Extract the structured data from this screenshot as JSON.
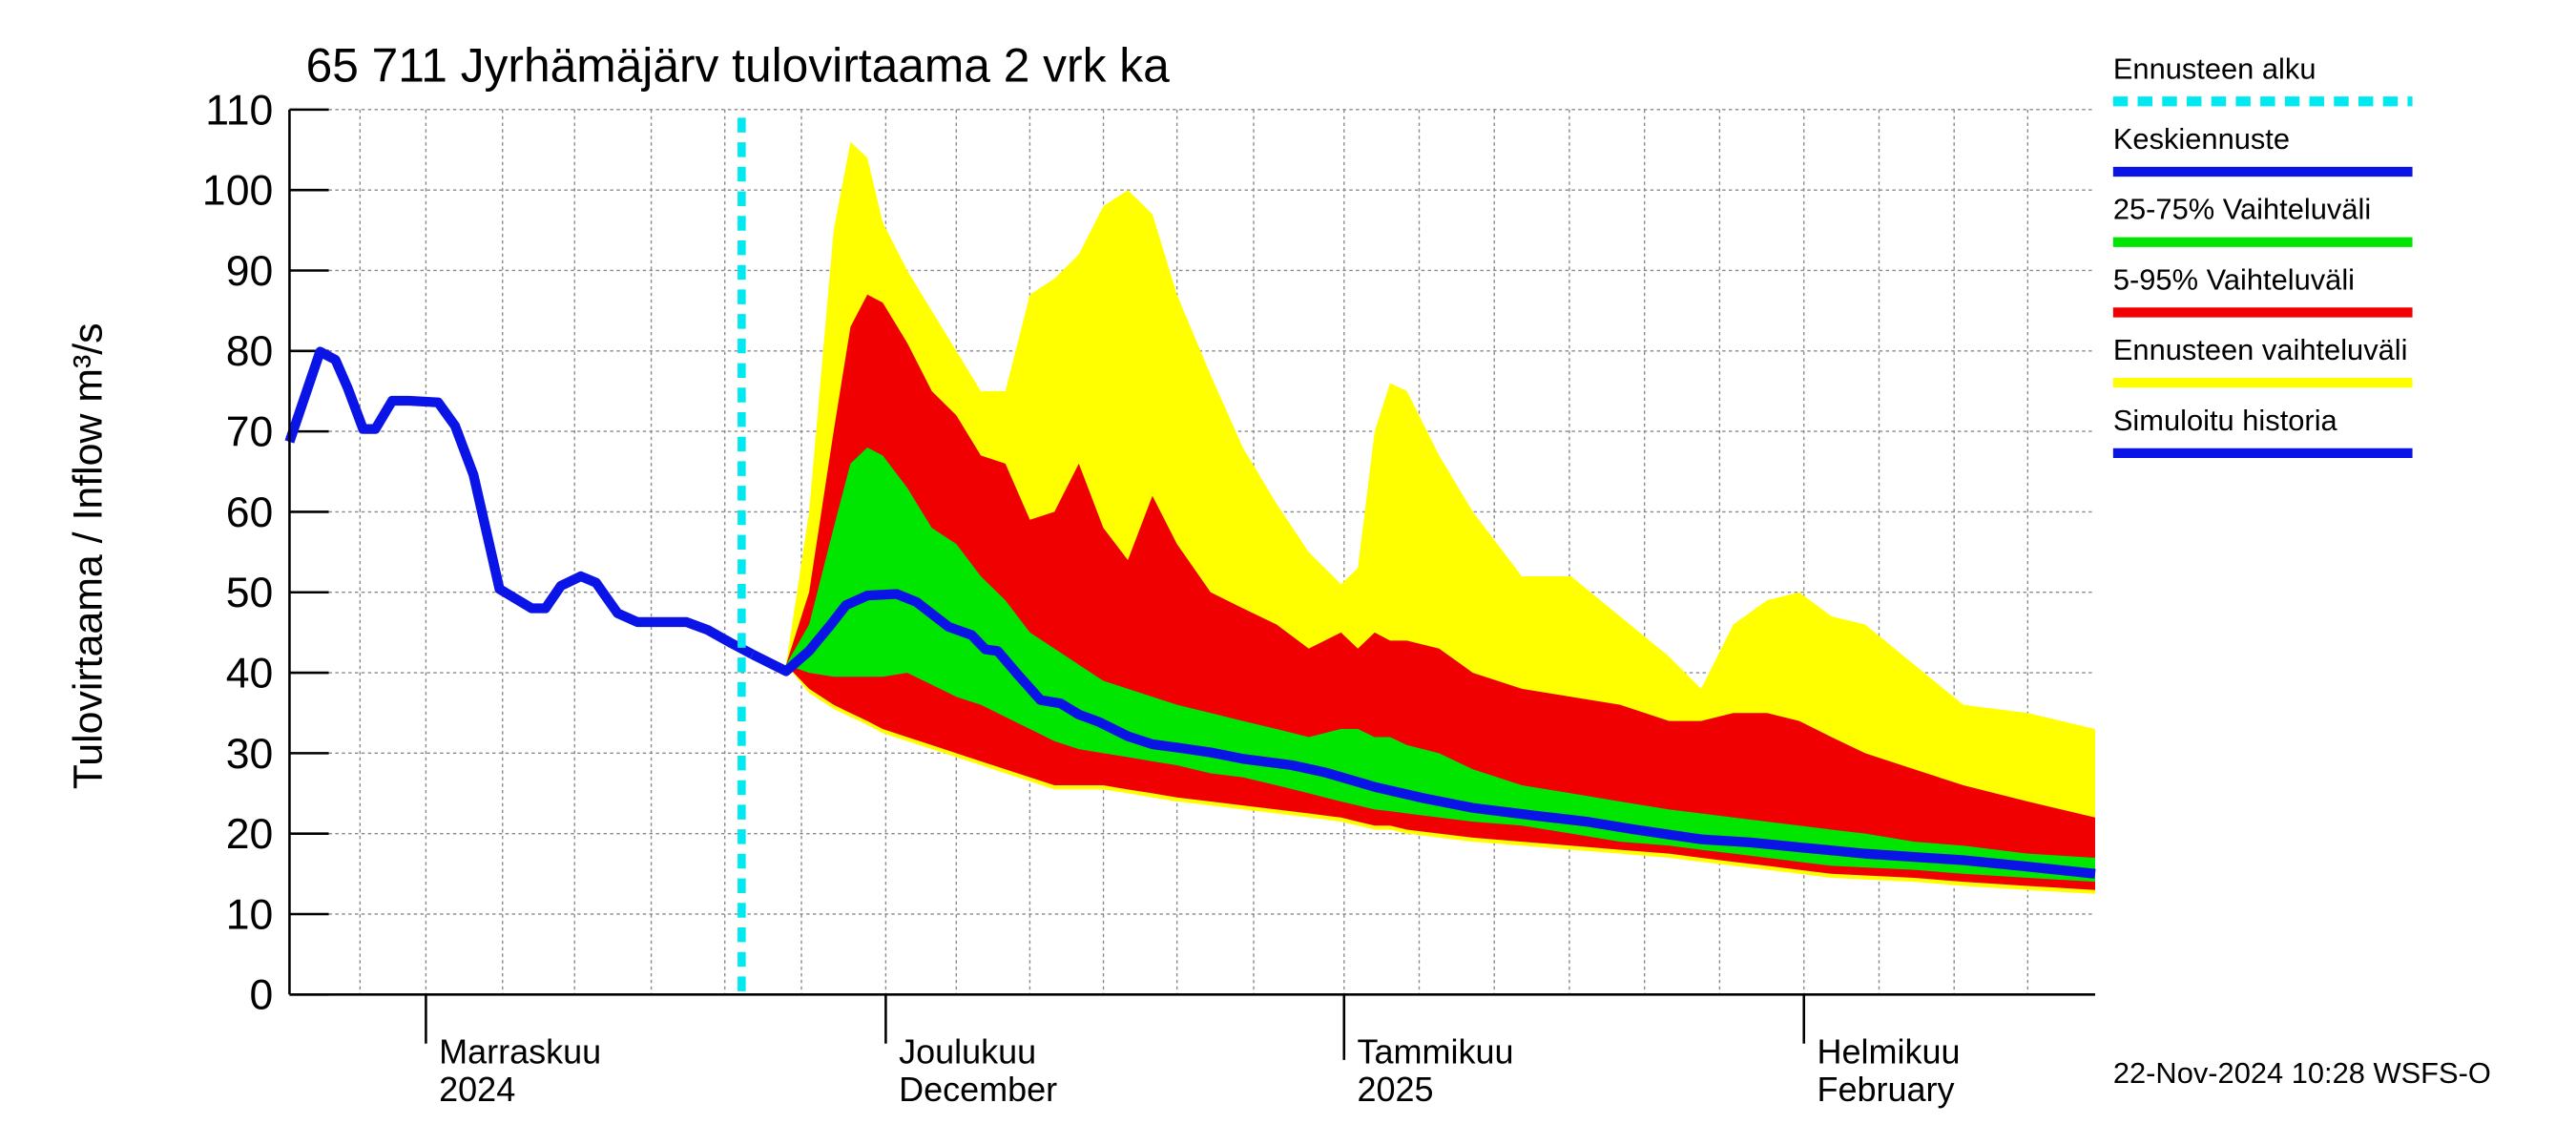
{
  "chart_data": {
    "type": "line",
    "title": "65 711 Jyrhämäjärv tulovirtaama 2 vrk ka",
    "y_label": "Tulovirtaama / Inflow    m³/s",
    "footer": "22-Nov-2024 10:28 WSFS-O",
    "xlim": [
      0,
      117.8
    ],
    "ylim": [
      0,
      110
    ],
    "yticks": [
      0,
      10,
      20,
      30,
      40,
      50,
      60,
      70,
      80,
      90,
      100,
      110
    ],
    "xticks": [
      {
        "value": 8.9,
        "label": "Marraskuu\n2024"
      },
      {
        "value": 38.9,
        "label": "Joulukuu\nDecember"
      },
      {
        "value": 68.8,
        "label": "Tammikuu\n2025"
      },
      {
        "value": 98.8,
        "label": "Helmikuu\nFebruary"
      }
    ],
    "xgrid": [
      4.6,
      13.9,
      18.6,
      23.6,
      28.4,
      33.4,
      43.5,
      48.3,
      53.1,
      57.9,
      62.9,
      73.7,
      78.6,
      83.5,
      88.4,
      93.3,
      103.7,
      108.6,
      113.4
    ],
    "grid": true,
    "legend": "right",
    "forecast_start": {
      "name": "Ennusteen alku",
      "x": 29.5,
      "color": "#00e8f0"
    },
    "series": [
      {
        "name": "Keskiennuste",
        "type": "line",
        "color": "#0a14e6",
        "x": [
          30.2,
          32.4,
          33.9,
          35.2,
          36.3,
          37.7,
          39.6,
          40.9,
          43.0,
          44.5,
          45.4,
          46.2,
          47.5,
          49.0,
          50.3,
          51.5,
          52.8,
          54.7,
          56.3,
          57.9,
          60.1,
          62.2,
          65.4,
          67.6,
          70.8,
          74.0,
          77.2,
          81.4,
          84.6,
          87.8,
          92.1,
          95.3,
          98.5,
          102.8,
          106.0,
          109.2,
          113.4,
          117.8
        ],
        "values": [
          42.3,
          40.2,
          42.7,
          45.7,
          48.4,
          49.6,
          49.8,
          48.8,
          45.7,
          44.7,
          42.9,
          42.7,
          39.8,
          36.6,
          36.2,
          34.8,
          33.9,
          32.1,
          31.1,
          30.7,
          30.1,
          29.3,
          28.5,
          27.6,
          25.8,
          24.4,
          23.2,
          22.2,
          21.5,
          20.5,
          19.3,
          18.9,
          18.3,
          17.5,
          17.1,
          16.7,
          15.9,
          15.0
        ]
      },
      {
        "name": "25-75% Vaihteluväli",
        "type": "band",
        "color": "#00e600",
        "x": [
          32.4,
          33.9,
          35.5,
          36.6,
          37.7,
          38.7,
          40.3,
          41.9,
          43.5,
          45.1,
          46.7,
          48.3,
          49.9,
          51.5,
          53.1,
          54.7,
          56.3,
          57.9,
          60.1,
          62.2,
          64.4,
          66.5,
          68.6,
          69.7,
          70.8,
          71.8,
          72.9,
          75.0,
          77.2,
          80.4,
          83.6,
          86.8,
          90.0,
          92.1,
          94.2,
          96.4,
          98.5,
          100.6,
          102.8,
          106.0,
          109.2,
          113.4,
          117.8
        ],
        "high": [
          41,
          46,
          58,
          66,
          68,
          67,
          63,
          58,
          56,
          52,
          49,
          45,
          43,
          41,
          39,
          38,
          37,
          36,
          35,
          34,
          33,
          32,
          33,
          33,
          32,
          32,
          31,
          30,
          28,
          26,
          25,
          24,
          23,
          22.5,
          22,
          21.5,
          21,
          20.5,
          20,
          19,
          18.5,
          17.5,
          17
        ],
        "low": [
          41,
          40,
          39.5,
          39.5,
          39.5,
          39.5,
          40,
          38.5,
          37,
          36,
          34.5,
          33,
          31.5,
          30.5,
          30,
          29.5,
          29,
          28.5,
          27.5,
          27,
          26,
          25,
          24,
          23.5,
          23,
          22.8,
          22.5,
          22,
          21.5,
          21,
          20,
          19,
          18.5,
          18,
          17.5,
          17,
          16.5,
          16,
          15.8,
          15.5,
          15,
          14.5,
          14
        ]
      },
      {
        "name": "5-95% Vaihteluväli",
        "type": "band",
        "color": "#f00000",
        "x": [
          32.4,
          33.9,
          35.5,
          36.6,
          37.7,
          38.7,
          40.3,
          41.9,
          43.5,
          45.1,
          46.7,
          48.3,
          49.9,
          51.5,
          53.1,
          54.7,
          56.3,
          57.9,
          60.1,
          62.2,
          64.4,
          66.5,
          68.6,
          69.7,
          70.8,
          71.8,
          72.9,
          75.0,
          77.2,
          80.4,
          83.6,
          86.8,
          90.0,
          92.1,
          94.2,
          96.4,
          98.5,
          100.6,
          102.8,
          106.0,
          109.2,
          113.4,
          117.8
        ],
        "high": [
          41,
          50,
          70,
          83,
          87,
          86,
          81,
          75,
          72,
          67,
          66,
          59,
          60,
          66,
          58,
          54,
          62,
          56,
          50,
          48,
          46,
          43,
          45,
          43,
          45,
          44,
          44,
          43,
          40,
          38,
          37,
          36,
          34,
          34,
          35,
          35,
          34,
          32,
          30,
          28,
          26,
          24,
          22
        ],
        "low": [
          41,
          38,
          36,
          35,
          34,
          33,
          32,
          31,
          30,
          29,
          28,
          27,
          26,
          26,
          26,
          25.5,
          25,
          24.5,
          24,
          23.5,
          23,
          22.5,
          22,
          21.5,
          21,
          21,
          20.5,
          20,
          19.5,
          19,
          18.5,
          18,
          17.5,
          17,
          16.5,
          16,
          15.5,
          15,
          14.8,
          14.5,
          14,
          13.5,
          13
        ]
      },
      {
        "name": "Ennusteen vaihteluväli",
        "type": "band",
        "color": "#ffff00",
        "x": [
          32.4,
          33.9,
          35.5,
          36.6,
          37.7,
          38.7,
          40.3,
          41.9,
          43.5,
          45.1,
          46.7,
          48.3,
          49.9,
          51.5,
          53.1,
          54.7,
          56.3,
          57.9,
          60.1,
          62.2,
          64.4,
          66.5,
          68.6,
          69.7,
          70.8,
          71.8,
          72.9,
          75.0,
          77.2,
          80.4,
          83.6,
          86.8,
          90.0,
          92.1,
          94.2,
          96.4,
          98.5,
          100.6,
          102.8,
          106.0,
          109.2,
          113.4,
          117.8
        ],
        "high": [
          41,
          60,
          95,
          106,
          104,
          96,
          90,
          85,
          80,
          75,
          75,
          87,
          89,
          92,
          98,
          100,
          97,
          87,
          77,
          68,
          61,
          55,
          51,
          53,
          70,
          76,
          75,
          67,
          60,
          52,
          52,
          47,
          42,
          38,
          46,
          49,
          50,
          47,
          46,
          41,
          36,
          35,
          33
        ],
        "low": [
          41,
          37.5,
          35.5,
          34.5,
          33.5,
          32.5,
          31.5,
          30.5,
          29.5,
          28.5,
          27.5,
          26.5,
          25.5,
          25.5,
          25.5,
          25,
          24.5,
          24,
          23.5,
          23,
          22.5,
          22,
          21.5,
          21,
          20.5,
          20.5,
          20,
          19.5,
          19,
          18.5,
          18,
          17.5,
          17,
          16.5,
          16,
          15.5,
          15,
          14.5,
          14.3,
          14,
          13.5,
          13,
          12.5
        ]
      },
      {
        "name": "Simuloitu historia",
        "type": "line",
        "color": "#0a14e6",
        "x": [
          0,
          2,
          3,
          3.8,
          4.8,
          5.6,
          6.7,
          7.8,
          9.7,
          10.8,
          12,
          13.7,
          15.8,
          16.7,
          17.7,
          19,
          20,
          21.4,
          22.7,
          25.9,
          27.3,
          28.8,
          30.2
        ],
        "values": [
          68.7,
          79.9,
          78.9,
          75.4,
          70.3,
          70.3,
          73.8,
          73.8,
          73.6,
          70.7,
          64.6,
          50.4,
          48,
          48,
          50.8,
          52,
          51.2,
          47.4,
          46.3,
          46.3,
          45.3,
          43.7,
          42.3
        ]
      }
    ]
  }
}
